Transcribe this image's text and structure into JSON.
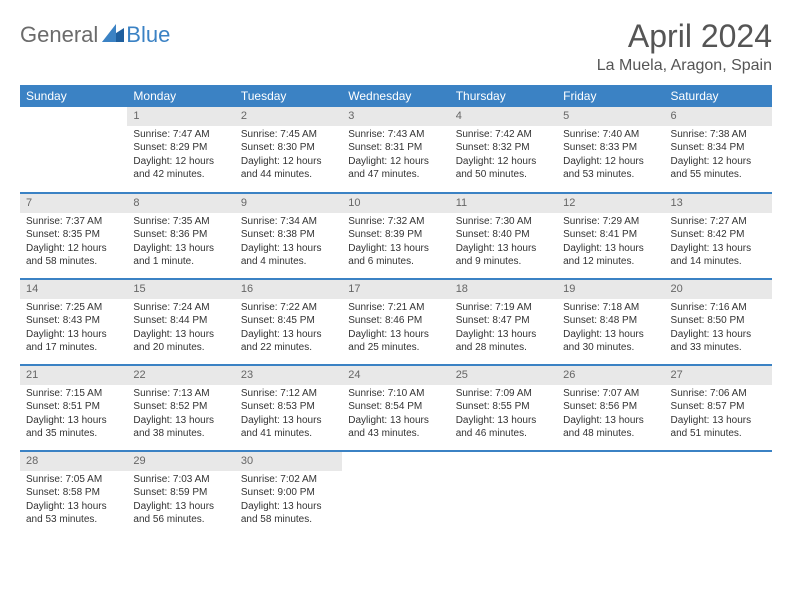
{
  "logo": {
    "text1": "General",
    "text2": "Blue"
  },
  "header": {
    "month_title": "April 2024",
    "location": "La Muela, Aragon, Spain"
  },
  "colors": {
    "header_bg": "#3b82c4",
    "daynum_bg": "#e8e8e8",
    "text": "#333333",
    "title_color": "#555555"
  },
  "weekdays": [
    "Sunday",
    "Monday",
    "Tuesday",
    "Wednesday",
    "Thursday",
    "Friday",
    "Saturday"
  ],
  "weeks": [
    [
      null,
      {
        "n": "1",
        "sr": "Sunrise: 7:47 AM",
        "ss": "Sunset: 8:29 PM",
        "dl": "Daylight: 12 hours and 42 minutes."
      },
      {
        "n": "2",
        "sr": "Sunrise: 7:45 AM",
        "ss": "Sunset: 8:30 PM",
        "dl": "Daylight: 12 hours and 44 minutes."
      },
      {
        "n": "3",
        "sr": "Sunrise: 7:43 AM",
        "ss": "Sunset: 8:31 PM",
        "dl": "Daylight: 12 hours and 47 minutes."
      },
      {
        "n": "4",
        "sr": "Sunrise: 7:42 AM",
        "ss": "Sunset: 8:32 PM",
        "dl": "Daylight: 12 hours and 50 minutes."
      },
      {
        "n": "5",
        "sr": "Sunrise: 7:40 AM",
        "ss": "Sunset: 8:33 PM",
        "dl": "Daylight: 12 hours and 53 minutes."
      },
      {
        "n": "6",
        "sr": "Sunrise: 7:38 AM",
        "ss": "Sunset: 8:34 PM",
        "dl": "Daylight: 12 hours and 55 minutes."
      }
    ],
    [
      {
        "n": "7",
        "sr": "Sunrise: 7:37 AM",
        "ss": "Sunset: 8:35 PM",
        "dl": "Daylight: 12 hours and 58 minutes."
      },
      {
        "n": "8",
        "sr": "Sunrise: 7:35 AM",
        "ss": "Sunset: 8:36 PM",
        "dl": "Daylight: 13 hours and 1 minute."
      },
      {
        "n": "9",
        "sr": "Sunrise: 7:34 AM",
        "ss": "Sunset: 8:38 PM",
        "dl": "Daylight: 13 hours and 4 minutes."
      },
      {
        "n": "10",
        "sr": "Sunrise: 7:32 AM",
        "ss": "Sunset: 8:39 PM",
        "dl": "Daylight: 13 hours and 6 minutes."
      },
      {
        "n": "11",
        "sr": "Sunrise: 7:30 AM",
        "ss": "Sunset: 8:40 PM",
        "dl": "Daylight: 13 hours and 9 minutes."
      },
      {
        "n": "12",
        "sr": "Sunrise: 7:29 AM",
        "ss": "Sunset: 8:41 PM",
        "dl": "Daylight: 13 hours and 12 minutes."
      },
      {
        "n": "13",
        "sr": "Sunrise: 7:27 AM",
        "ss": "Sunset: 8:42 PM",
        "dl": "Daylight: 13 hours and 14 minutes."
      }
    ],
    [
      {
        "n": "14",
        "sr": "Sunrise: 7:25 AM",
        "ss": "Sunset: 8:43 PM",
        "dl": "Daylight: 13 hours and 17 minutes."
      },
      {
        "n": "15",
        "sr": "Sunrise: 7:24 AM",
        "ss": "Sunset: 8:44 PM",
        "dl": "Daylight: 13 hours and 20 minutes."
      },
      {
        "n": "16",
        "sr": "Sunrise: 7:22 AM",
        "ss": "Sunset: 8:45 PM",
        "dl": "Daylight: 13 hours and 22 minutes."
      },
      {
        "n": "17",
        "sr": "Sunrise: 7:21 AM",
        "ss": "Sunset: 8:46 PM",
        "dl": "Daylight: 13 hours and 25 minutes."
      },
      {
        "n": "18",
        "sr": "Sunrise: 7:19 AM",
        "ss": "Sunset: 8:47 PM",
        "dl": "Daylight: 13 hours and 28 minutes."
      },
      {
        "n": "19",
        "sr": "Sunrise: 7:18 AM",
        "ss": "Sunset: 8:48 PM",
        "dl": "Daylight: 13 hours and 30 minutes."
      },
      {
        "n": "20",
        "sr": "Sunrise: 7:16 AM",
        "ss": "Sunset: 8:50 PM",
        "dl": "Daylight: 13 hours and 33 minutes."
      }
    ],
    [
      {
        "n": "21",
        "sr": "Sunrise: 7:15 AM",
        "ss": "Sunset: 8:51 PM",
        "dl": "Daylight: 13 hours and 35 minutes."
      },
      {
        "n": "22",
        "sr": "Sunrise: 7:13 AM",
        "ss": "Sunset: 8:52 PM",
        "dl": "Daylight: 13 hours and 38 minutes."
      },
      {
        "n": "23",
        "sr": "Sunrise: 7:12 AM",
        "ss": "Sunset: 8:53 PM",
        "dl": "Daylight: 13 hours and 41 minutes."
      },
      {
        "n": "24",
        "sr": "Sunrise: 7:10 AM",
        "ss": "Sunset: 8:54 PM",
        "dl": "Daylight: 13 hours and 43 minutes."
      },
      {
        "n": "25",
        "sr": "Sunrise: 7:09 AM",
        "ss": "Sunset: 8:55 PM",
        "dl": "Daylight: 13 hours and 46 minutes."
      },
      {
        "n": "26",
        "sr": "Sunrise: 7:07 AM",
        "ss": "Sunset: 8:56 PM",
        "dl": "Daylight: 13 hours and 48 minutes."
      },
      {
        "n": "27",
        "sr": "Sunrise: 7:06 AM",
        "ss": "Sunset: 8:57 PM",
        "dl": "Daylight: 13 hours and 51 minutes."
      }
    ],
    [
      {
        "n": "28",
        "sr": "Sunrise: 7:05 AM",
        "ss": "Sunset: 8:58 PM",
        "dl": "Daylight: 13 hours and 53 minutes."
      },
      {
        "n": "29",
        "sr": "Sunrise: 7:03 AM",
        "ss": "Sunset: 8:59 PM",
        "dl": "Daylight: 13 hours and 56 minutes."
      },
      {
        "n": "30",
        "sr": "Sunrise: 7:02 AM",
        "ss": "Sunset: 9:00 PM",
        "dl": "Daylight: 13 hours and 58 minutes."
      },
      null,
      null,
      null,
      null
    ]
  ]
}
